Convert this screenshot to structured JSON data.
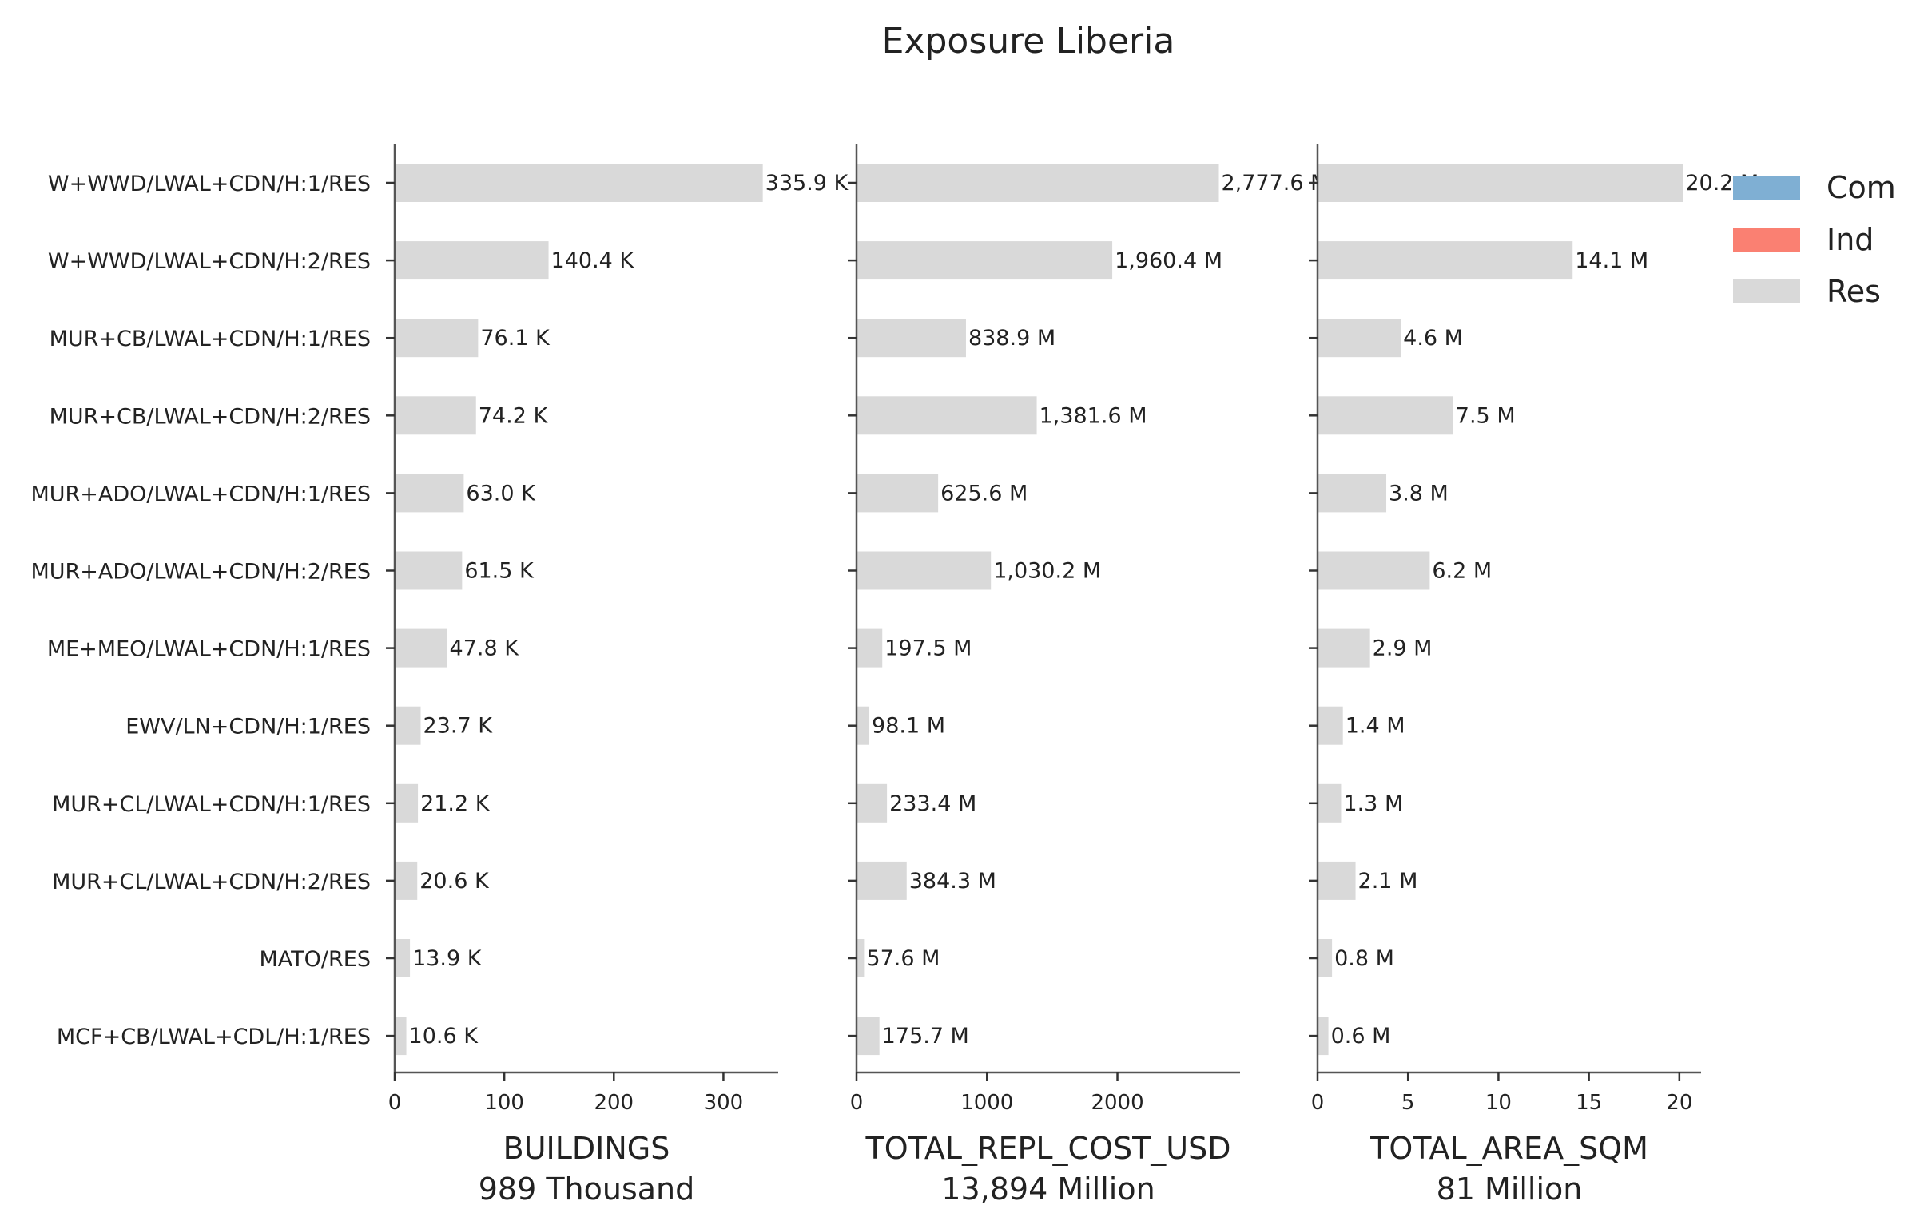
{
  "chart_data": {
    "type": "bar",
    "orientation": "horizontal",
    "title": "Exposure Liberia",
    "categories": [
      "W+WWD/LWAL+CDN/H:1/RES",
      "W+WWD/LWAL+CDN/H:2/RES",
      "MUR+CB/LWAL+CDN/H:1/RES",
      "MUR+CB/LWAL+CDN/H:2/RES",
      "MUR+ADO/LWAL+CDN/H:1/RES",
      "MUR+ADO/LWAL+CDN/H:2/RES",
      "ME+MEO/LWAL+CDN/H:1/RES",
      "EWV/LN+CDN/H:1/RES",
      "MUR+CL/LWAL+CDN/H:1/RES",
      "MUR+CL/LWAL+CDN/H:2/RES",
      "MATO/RES",
      "MCF+CB/LWAL+CDL/H:1/RES"
    ],
    "legend": {
      "position": "top-right",
      "entries": [
        {
          "name": "Com",
          "color": "#7fafd3"
        },
        {
          "name": "Ind",
          "color": "#fa8072"
        },
        {
          "name": "Res",
          "color": "#d9d9d9"
        }
      ]
    },
    "grid": false,
    "panels": [
      {
        "xlabel": "BUILDINGS",
        "xsublabel": "989 Thousand",
        "xlim": [
          0,
          350
        ],
        "xticks": [
          0,
          100,
          200,
          300
        ],
        "xtick_labels": [
          "0",
          "100",
          "200",
          "300"
        ],
        "series": [
          {
            "name": "Res",
            "color": "#d9d9d9",
            "values": [
              335.9,
              140.4,
              76.1,
              74.2,
              63.0,
              61.5,
              47.8,
              23.7,
              21.2,
              20.6,
              13.9,
              10.6
            ]
          }
        ],
        "labels": [
          "335.9 K",
          "140.4 K",
          "76.1 K",
          "74.2 K",
          "63.0 K",
          "61.5 K",
          "47.8 K",
          "23.7 K",
          "21.2 K",
          "20.6 K",
          "13.9 K",
          "10.6 K"
        ]
      },
      {
        "xlabel": "TOTAL_REPL_COST_USD",
        "xsublabel": "13,894 Million",
        "xlim": [
          0,
          2940
        ],
        "xticks": [
          0,
          1000,
          2000
        ],
        "xtick_labels": [
          "0",
          "1000",
          "2000"
        ],
        "series": [
          {
            "name": "Res",
            "color": "#d9d9d9",
            "values": [
              2777.6,
              1960.4,
              838.9,
              1381.6,
              625.6,
              1030.2,
              197.5,
              98.1,
              233.4,
              384.3,
              57.6,
              175.7
            ]
          }
        ],
        "labels": [
          "2,777.6 M",
          "1,960.4 M",
          "838.9 M",
          "1,381.6 M",
          "625.6 M",
          "1,030.2 M",
          "197.5 M",
          "98.1 M",
          "233.4 M",
          "384.3 M",
          "57.6 M",
          "175.7 M"
        ]
      },
      {
        "xlabel": "TOTAL_AREA_SQM",
        "xsublabel": "81 Million",
        "xlim": [
          0,
          21.2
        ],
        "xticks": [
          0,
          5,
          10,
          15,
          20
        ],
        "xtick_labels": [
          "0",
          "5",
          "10",
          "15",
          "20"
        ],
        "series": [
          {
            "name": "Res",
            "color": "#d9d9d9",
            "values": [
              20.2,
              14.1,
              4.6,
              7.5,
              3.8,
              6.2,
              2.9,
              1.4,
              1.3,
              2.1,
              0.8,
              0.6
            ]
          }
        ],
        "labels": [
          "20.2 M",
          "14.1 M",
          "4.6 M",
          "7.5 M",
          "3.8 M",
          "6.2 M",
          "2.9 M",
          "1.4 M",
          "1.3 M",
          "2.1 M",
          "0.8 M",
          "0.6 M"
        ]
      }
    ]
  }
}
